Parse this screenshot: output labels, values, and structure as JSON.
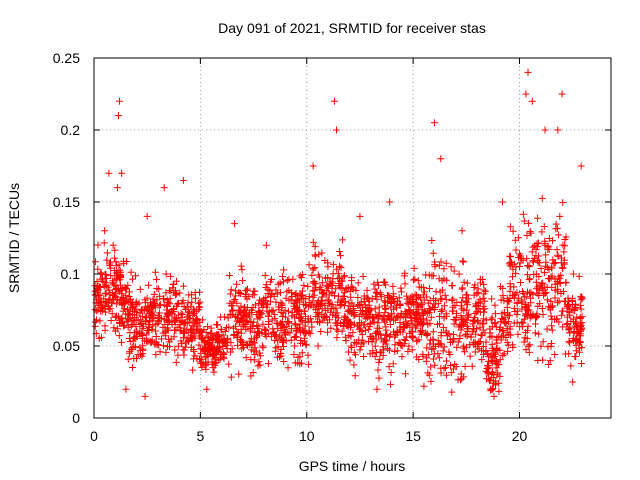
{
  "chart_data": {
    "type": "scatter",
    "title": "Day 091 of 2021, SRMTID for receiver stas",
    "xlabel": "GPS time / hours",
    "ylabel": "SRMTID / TECUs",
    "xlim": [
      0,
      24.3
    ],
    "ylim": [
      0,
      0.25
    ],
    "x_ticks": [
      0,
      5,
      10,
      15,
      20
    ],
    "x_tick_labels": [
      "0",
      "5",
      "10",
      "15",
      "20"
    ],
    "y_ticks": [
      0,
      0.05,
      0.1,
      0.15,
      0.2,
      0.25
    ],
    "y_tick_labels": [
      "0",
      "0.05",
      "0.1",
      "0.15",
      "0.2",
      "0.25"
    ],
    "grid": true,
    "marker": "+",
    "color": "#ff0000",
    "series": [
      {
        "name": "SRMTID",
        "note": "dense point cloud, typical values 0.03-0.12 TECU; highlighted extremes listed",
        "points": [
          [
            0.1,
            0.08
          ],
          [
            0.3,
            0.1
          ],
          [
            0.5,
            0.13
          ],
          [
            0.7,
            0.17
          ],
          [
            0.9,
            0.12
          ],
          [
            1.1,
            0.16
          ],
          [
            1.15,
            0.21
          ],
          [
            1.2,
            0.22
          ],
          [
            1.3,
            0.17
          ],
          [
            1.5,
            0.02
          ],
          [
            2.4,
            0.015
          ],
          [
            2.5,
            0.14
          ],
          [
            3.3,
            0.16
          ],
          [
            4.2,
            0.165
          ],
          [
            5.3,
            0.02
          ],
          [
            6.6,
            0.135
          ],
          [
            8.1,
            0.12
          ],
          [
            10.3,
            0.175
          ],
          [
            11.3,
            0.22
          ],
          [
            11.4,
            0.2
          ],
          [
            12.5,
            0.14
          ],
          [
            13.3,
            0.02
          ],
          [
            13.9,
            0.15
          ],
          [
            16.0,
            0.205
          ],
          [
            16.3,
            0.18
          ],
          [
            17.3,
            0.13
          ],
          [
            18.8,
            0.015
          ],
          [
            19.2,
            0.15
          ],
          [
            20.3,
            0.225
          ],
          [
            20.4,
            0.24
          ],
          [
            20.6,
            0.22
          ],
          [
            21.2,
            0.2
          ],
          [
            21.8,
            0.2
          ],
          [
            22.0,
            0.225
          ],
          [
            22.5,
            0.025
          ],
          [
            22.9,
            0.175
          ]
        ]
      }
    ]
  }
}
